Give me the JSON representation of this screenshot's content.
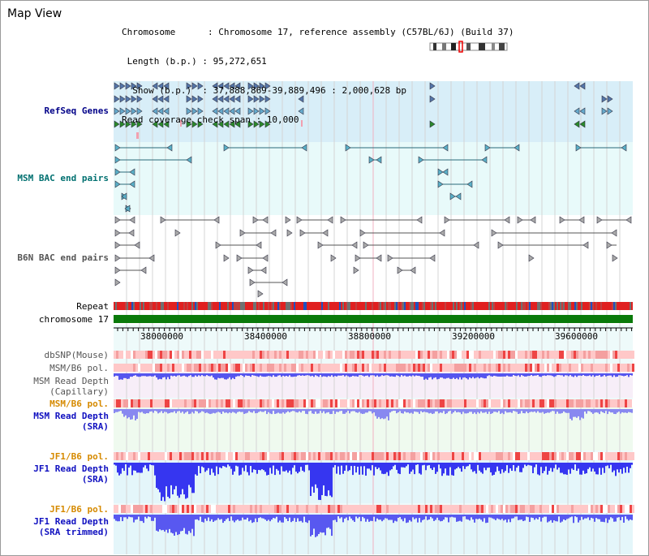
{
  "header": {
    "title": "Map View",
    "info_lines": [
      "Chromosome      : Chromosome 17, reference assembly (C57BL/6J) (Build 37)",
      " Length (b.p.) : 95,272,651",
      "  Show (b.p.)  : 37,888,869-39,889,496 : 2,000,628 bp",
      "Read coverage check span : 10,000"
    ]
  },
  "tracks": {
    "refseq": "RefSeq Genes",
    "msm_bac": "MSM BAC end pairs",
    "b6n_bac": "B6N BAC end pairs",
    "repeat": "Repeat",
    "chromosome": "chromosome 17",
    "dbsnp": "dbSNP(Mouse)",
    "msm_b6_pol": "MSM/B6 pol.",
    "msm_depth_cap_1": "MSM Read Depth",
    "msm_depth_cap_2": "(Capillary)",
    "msm_b6_pol2": "MSM/B6 pol.",
    "msm_depth_sra_1": "MSM Read Depth",
    "msm_depth_sra_2": "(SRA)",
    "jf1_pol": "JF1/B6 pol.",
    "jf1_depth_1": "JF1 Read Depth",
    "jf1_depth_2": "(SRA)",
    "jf1_pol2": "JF1/B6 pol.",
    "jf1_trim_1": "JF1 Read Depth",
    "jf1_trim_2": "(SRA trimmed)"
  },
  "axis": {
    "ticks": [
      "38000000",
      "38400000",
      "38800000",
      "39200000",
      "39600000"
    ]
  },
  "colors": {
    "refseq_bg": "#d8eef8",
    "msm_bac_bg": "#e8fafa",
    "b6n_bg": "#ffffff",
    "repeat": "#e02020",
    "chrom": "#0a7a0a",
    "depth_blue": "#3030f0",
    "pol_pink": "#ffc8c8"
  }
}
